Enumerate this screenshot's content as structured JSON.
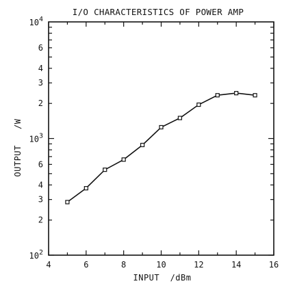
{
  "chart_data": {
    "type": "line",
    "title": "I/O CHARACTERISTICS OF POWER AMP",
    "xlabel": "INPUT  /dBm",
    "ylabel": "OUTPUT   /W",
    "xlim": [
      4,
      16
    ],
    "ylim": [
      100,
      10000
    ],
    "yscale": "log",
    "grid": false,
    "x_tick_labels": [
      "4",
      "6",
      "8",
      "10",
      "12",
      "14",
      "16"
    ],
    "y_major_ticks": [
      {
        "value": 100,
        "base": "10",
        "exp": "2"
      },
      {
        "value": 1000,
        "base": "10",
        "exp": "3"
      },
      {
        "value": 10000,
        "base": "10",
        "exp": "4"
      }
    ],
    "y_minor_labels": [
      {
        "value": 200,
        "label": "2"
      },
      {
        "value": 300,
        "label": "3"
      },
      {
        "value": 400,
        "label": "4"
      },
      {
        "value": 600,
        "label": "6"
      },
      {
        "value": 2000,
        "label": "2"
      },
      {
        "value": 3000,
        "label": "3"
      },
      {
        "value": 4000,
        "label": "4"
      },
      {
        "value": 6000,
        "label": "6"
      }
    ],
    "series": [
      {
        "x": [
          5,
          6,
          7,
          8,
          9,
          10,
          11,
          12,
          13,
          14,
          15
        ],
        "y": [
          285,
          375,
          540,
          660,
          880,
          1250,
          1500,
          1950,
          2350,
          2450,
          2350
        ],
        "marker": "square",
        "color": "#111111"
      }
    ]
  }
}
